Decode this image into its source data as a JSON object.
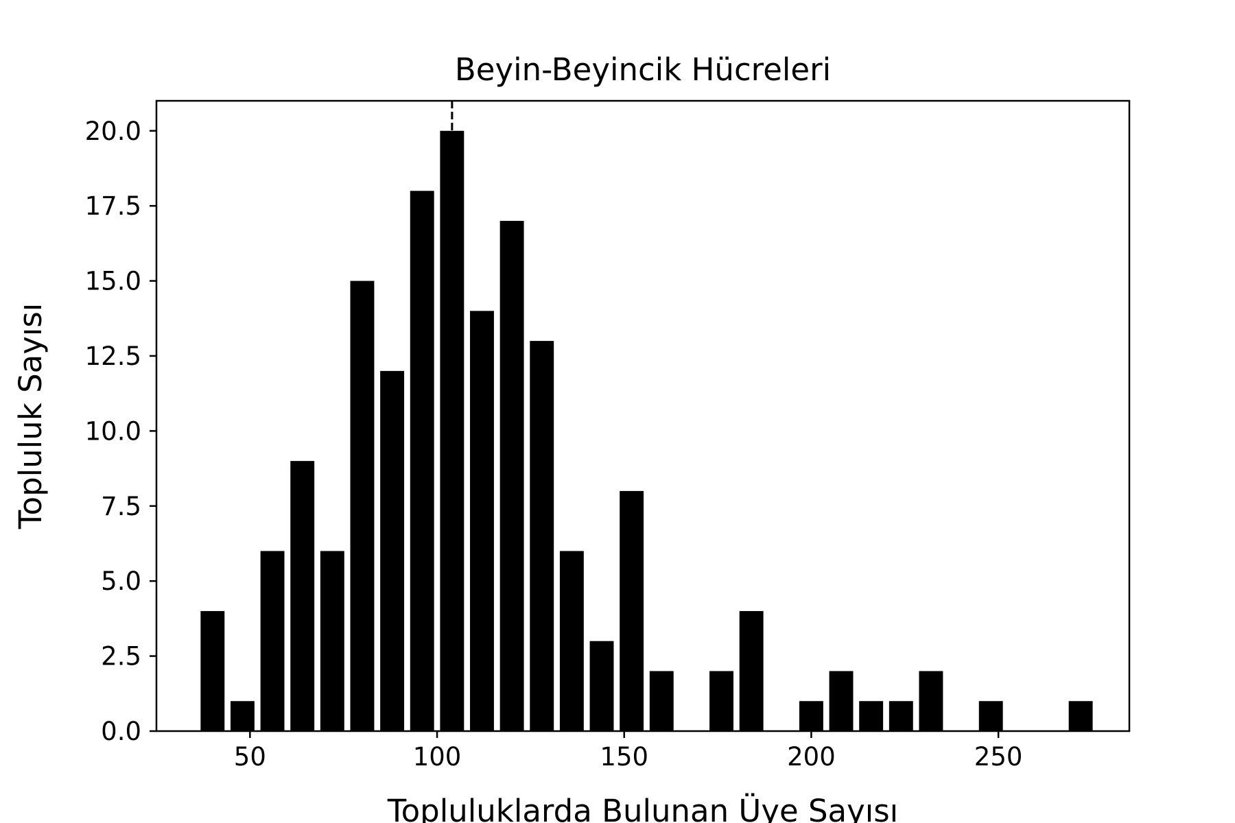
{
  "chart_data": {
    "type": "bar",
    "title": "Beyin-Beyincik Hücreleri",
    "xlabel": "Topluluklarda Bulunan Üye Sayısı",
    "ylabel": "Topluluk Sayısı",
    "xlim": [
      25,
      285
    ],
    "ylim": [
      0,
      21
    ],
    "bin_width": 8,
    "x_ticks": [
      50,
      100,
      150,
      200,
      250
    ],
    "x_tick_labels": [
      "50",
      "100",
      "150",
      "200",
      "250"
    ],
    "y_ticks": [
      0,
      2.5,
      5,
      7.5,
      10,
      12.5,
      15,
      17.5,
      20
    ],
    "y_tick_labels": [
      "0.0",
      "2.5",
      "5.0",
      "7.5",
      "10.0",
      "12.5",
      "15.0",
      "17.5",
      "20.0"
    ],
    "bars": [
      {
        "x": 40,
        "value": 4
      },
      {
        "x": 48,
        "value": 1
      },
      {
        "x": 56,
        "value": 6
      },
      {
        "x": 64,
        "value": 9
      },
      {
        "x": 72,
        "value": 6
      },
      {
        "x": 80,
        "value": 15
      },
      {
        "x": 88,
        "value": 12
      },
      {
        "x": 96,
        "value": 18
      },
      {
        "x": 104,
        "value": 20
      },
      {
        "x": 112,
        "value": 14
      },
      {
        "x": 120,
        "value": 17
      },
      {
        "x": 128,
        "value": 13
      },
      {
        "x": 136,
        "value": 6
      },
      {
        "x": 144,
        "value": 3
      },
      {
        "x": 152,
        "value": 8
      },
      {
        "x": 160,
        "value": 2
      },
      {
        "x": 176,
        "value": 2
      },
      {
        "x": 184,
        "value": 4
      },
      {
        "x": 200,
        "value": 1
      },
      {
        "x": 208,
        "value": 2
      },
      {
        "x": 216,
        "value": 1
      },
      {
        "x": 224,
        "value": 1
      },
      {
        "x": 232,
        "value": 2
      },
      {
        "x": 248,
        "value": 1
      },
      {
        "x": 272,
        "value": 1
      }
    ],
    "reference_line": {
      "x": 104,
      "style": "dashed"
    },
    "bar_color": "#000000",
    "grid": false,
    "legend": "none"
  }
}
